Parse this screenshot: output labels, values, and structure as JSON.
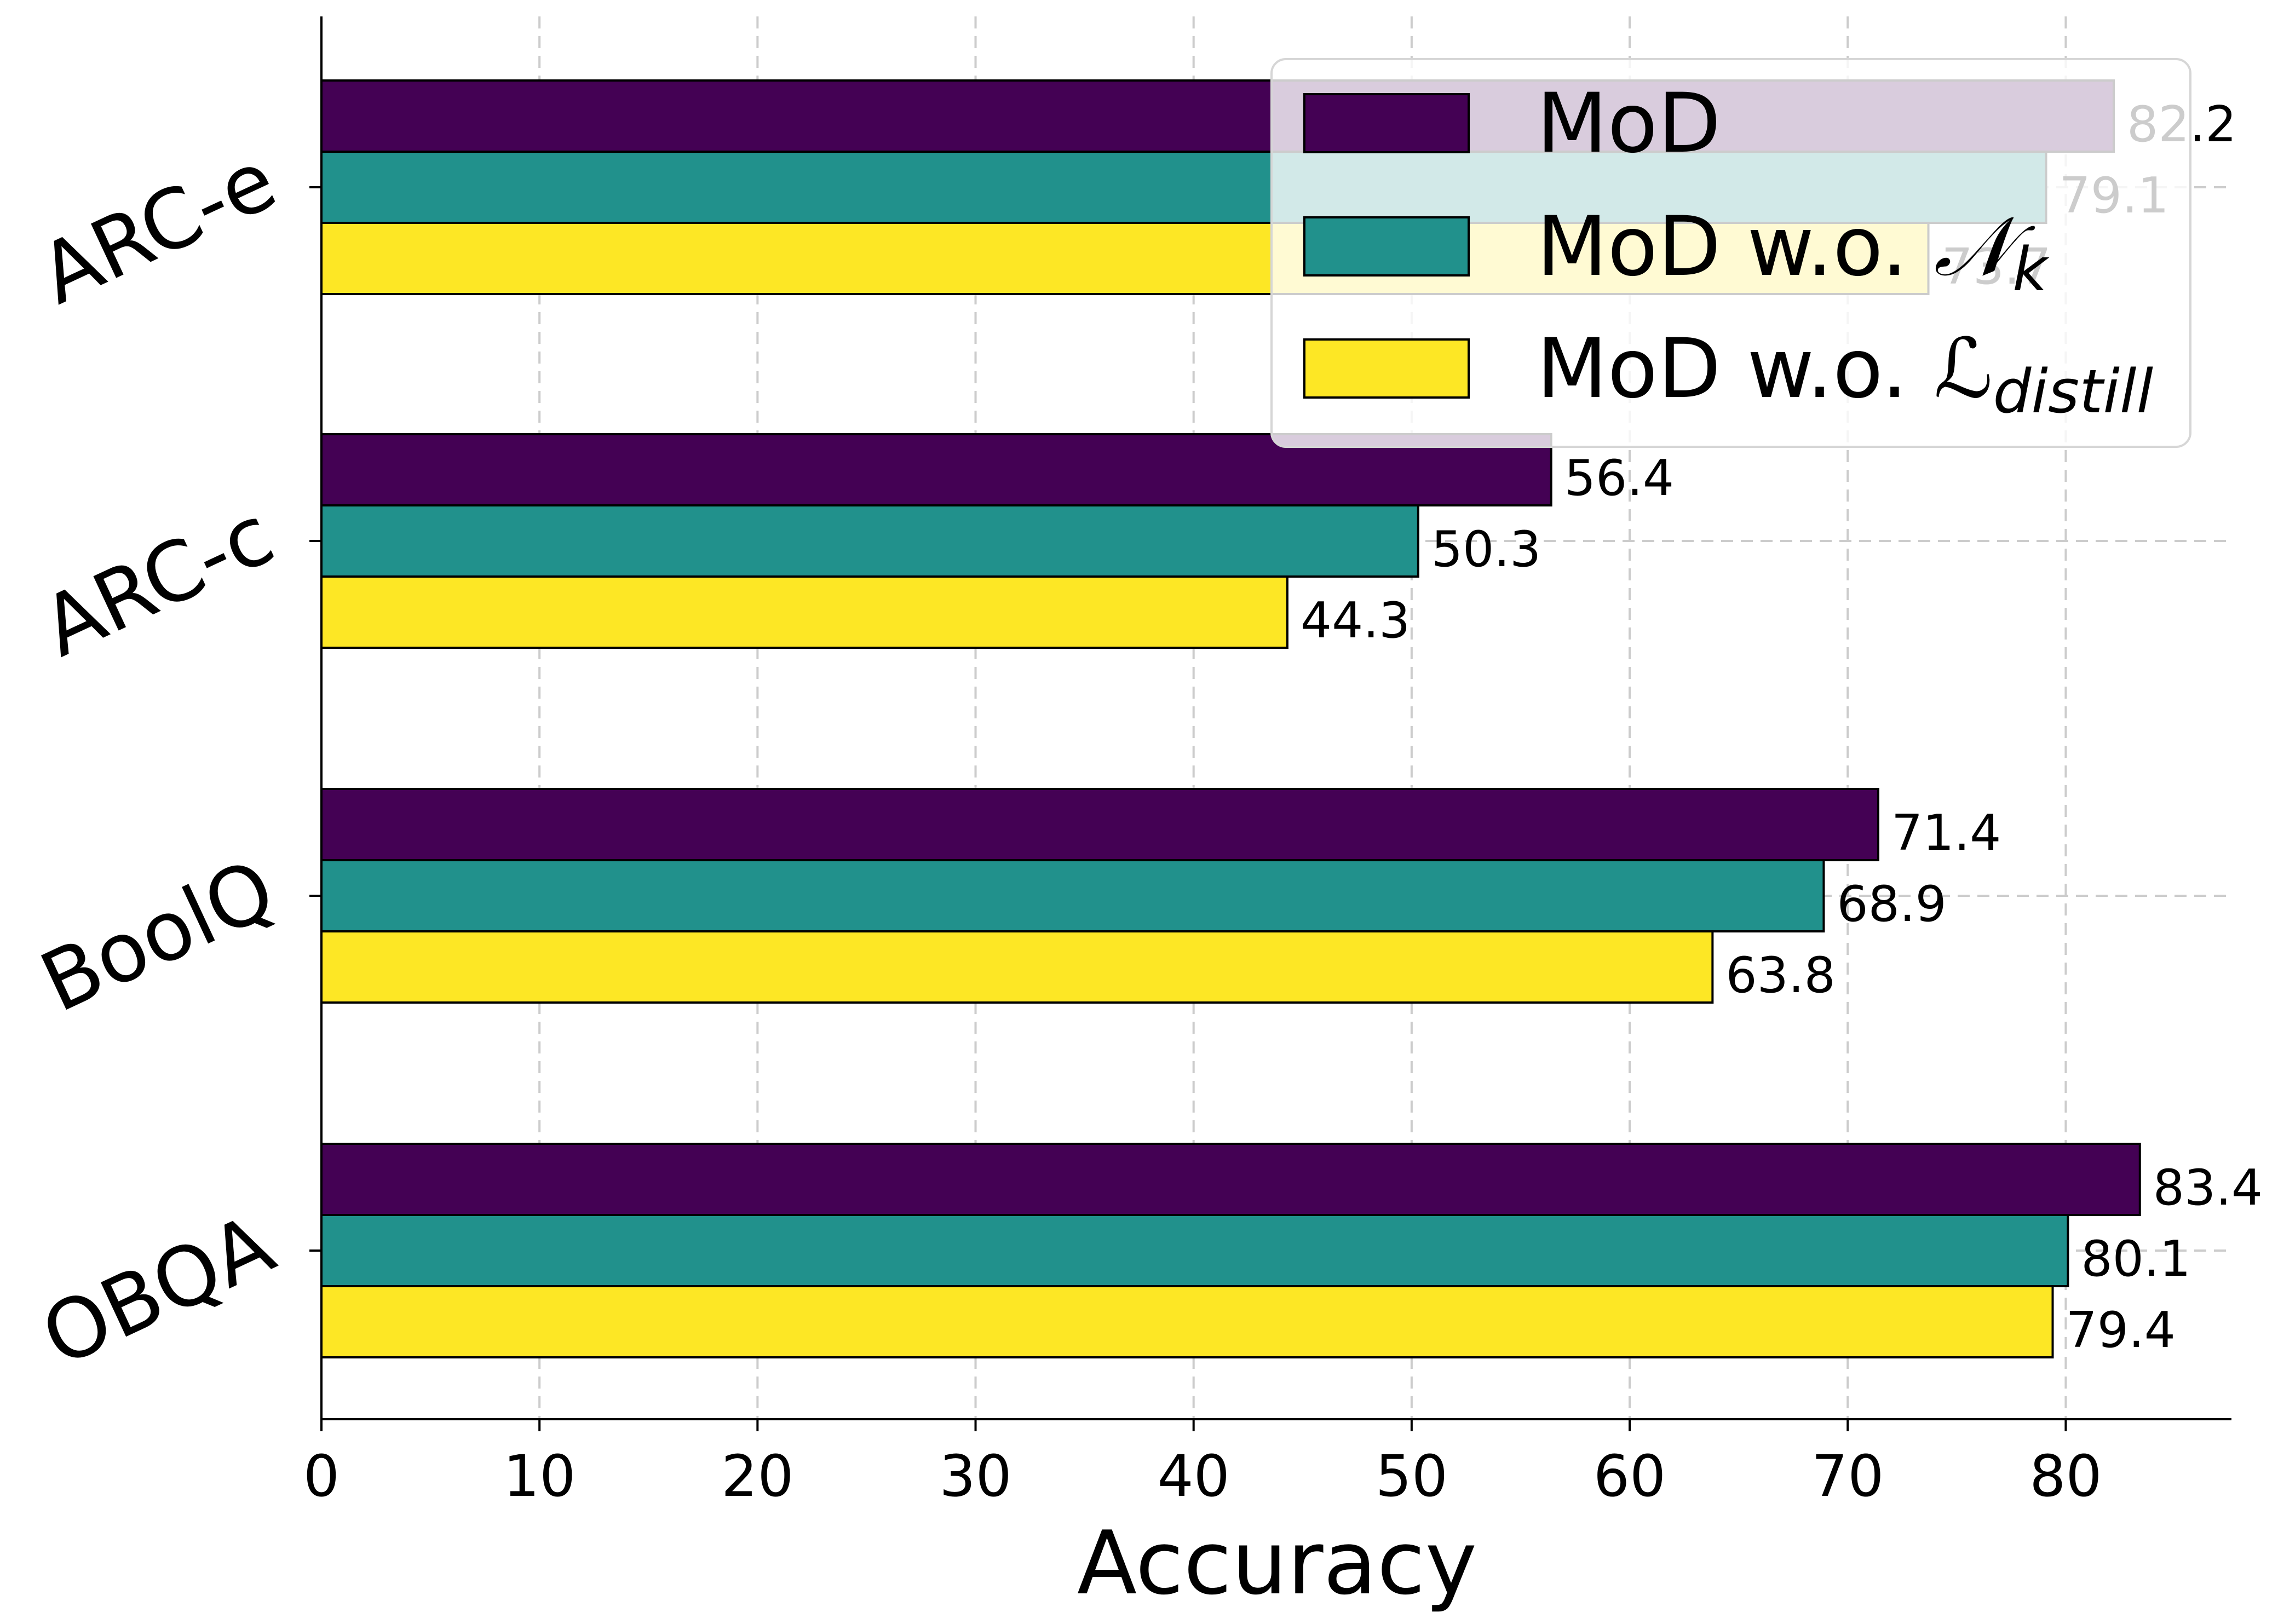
{
  "chart_data": {
    "type": "bar",
    "orientation": "horizontal",
    "title": "",
    "xlabel": "Accuracy",
    "ylabel": "",
    "categories": [
      "ARC-e",
      "ARC-c",
      "BoolQ",
      "OBQA"
    ],
    "xlim": [
      0,
      87.6
    ],
    "xticks": [
      0,
      10,
      20,
      30,
      40,
      50,
      60,
      70,
      80
    ],
    "grid": true,
    "legend_placement": "top-right",
    "series": [
      {
        "name": "MoD",
        "legend_base": "MoD",
        "legend_symbol": "",
        "legend_subscript": "",
        "color": "#440154",
        "values": [
          82.2,
          56.4,
          71.4,
          83.4
        ],
        "labels": [
          "82.2",
          "56.4",
          "71.4",
          "83.4"
        ]
      },
      {
        "name": "MoD w.o. 𝒩k",
        "legend_base": "MoD w.o. ",
        "legend_symbol": "𝒩",
        "legend_subscript": "k",
        "color": "#21918c",
        "values": [
          79.1,
          50.3,
          68.9,
          80.1
        ],
        "labels": [
          "79.1",
          "50.3",
          "68.9",
          "80.1"
        ]
      },
      {
        "name": "MoD w.o. ℒdistill",
        "legend_base": "MoD w.o. ",
        "legend_symbol": "ℒ",
        "legend_subscript": "distill",
        "color": "#fde725",
        "values": [
          73.7,
          44.3,
          63.8,
          79.4
        ],
        "labels": [
          "73.7",
          "44.3",
          "63.8",
          "79.4"
        ]
      }
    ]
  }
}
